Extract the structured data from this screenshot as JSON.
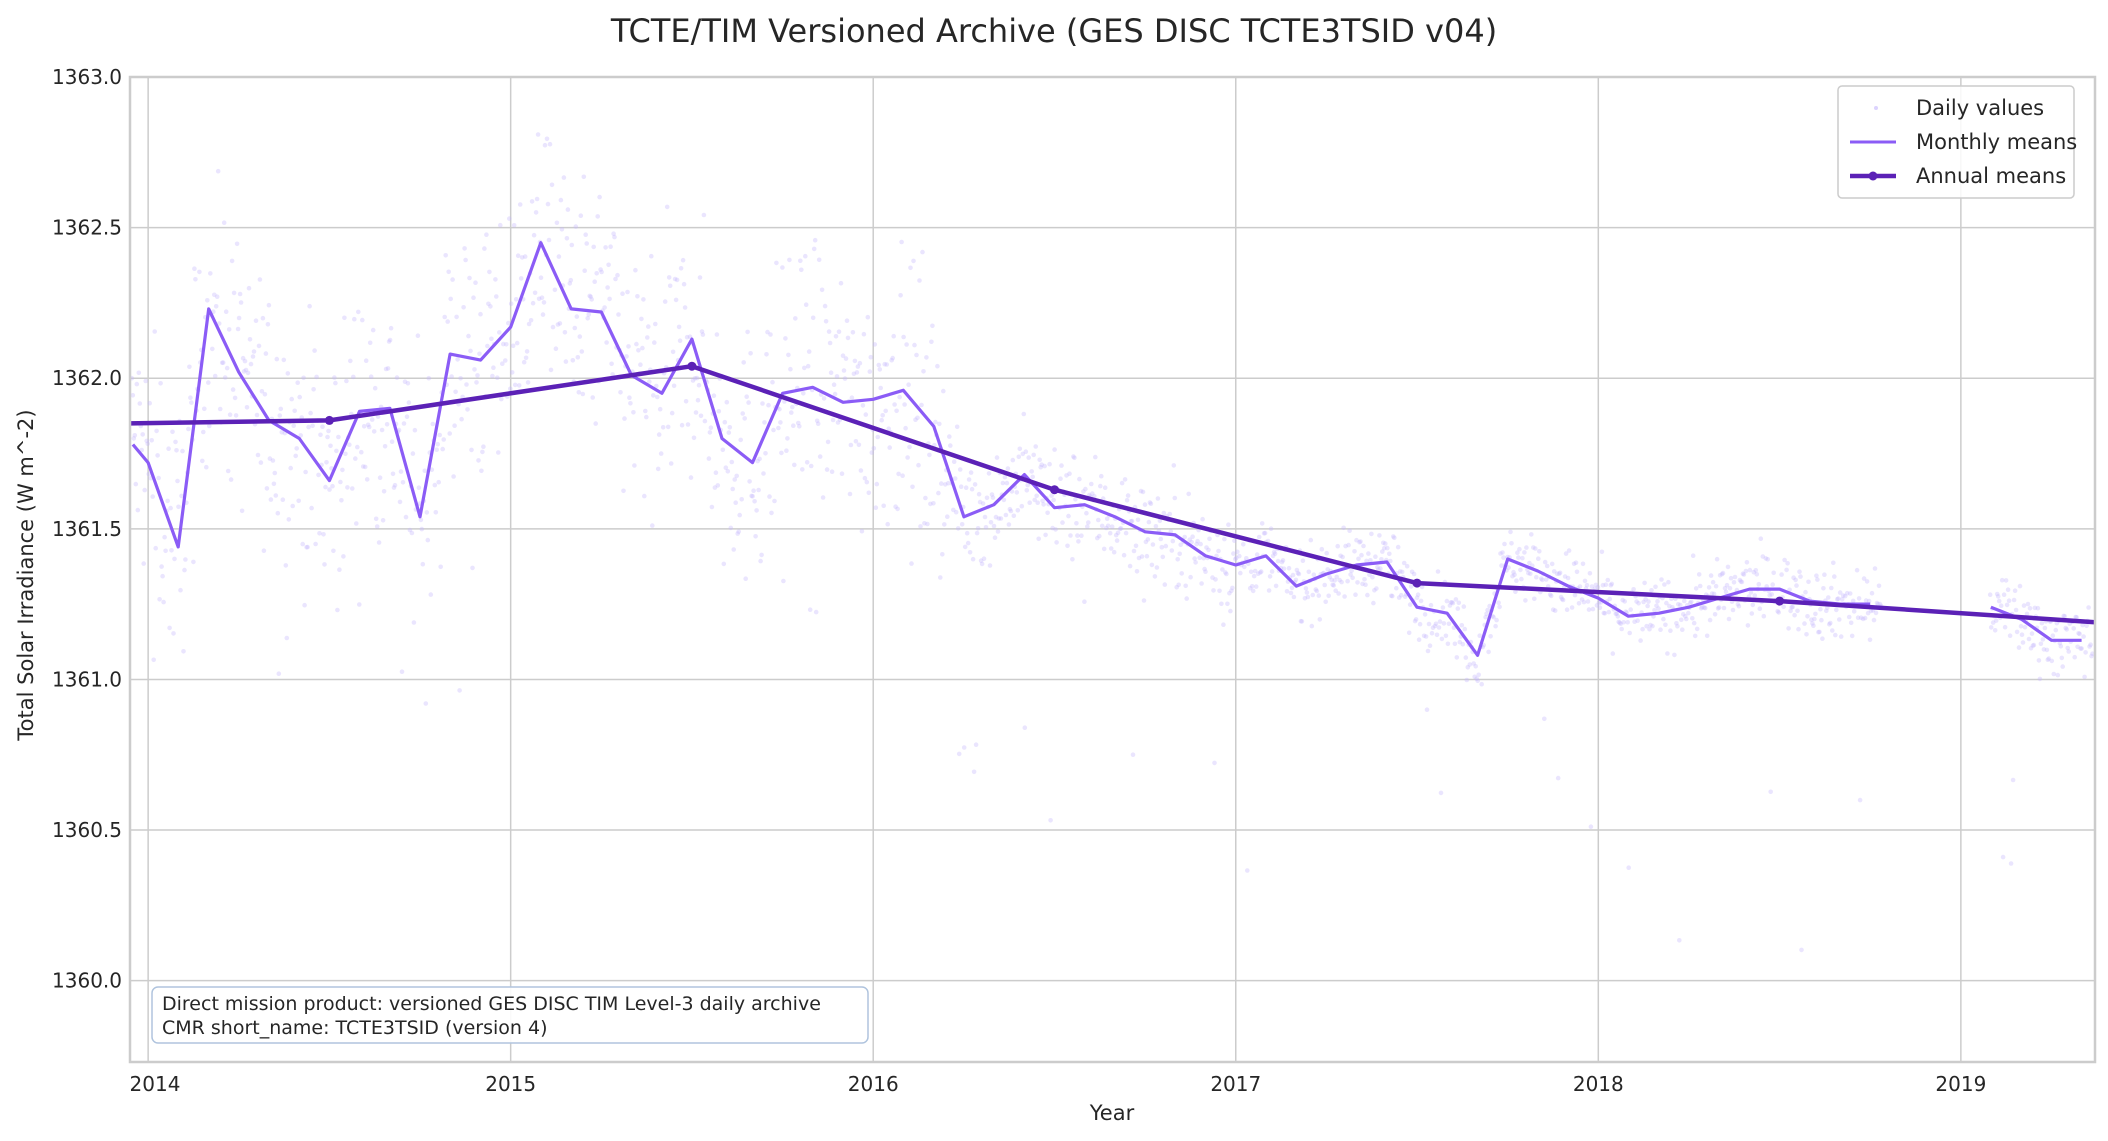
{
  "chart_data": {
    "type": "line",
    "title": "TCTE/TIM Versioned Archive (GES DISC TCTE3TSID v04)",
    "xlabel": "Year",
    "ylabel": "Total Solar Irradiance (W m^-2)",
    "xlim": [
      2013.95,
      2019.37
    ],
    "ylim": [
      1359.73,
      1363.0
    ],
    "xticks": [
      2014,
      2015,
      2016,
      2017,
      2018,
      2019
    ],
    "yticks": [
      1360.0,
      1360.5,
      1361.0,
      1361.5,
      1362.0,
      1362.5,
      1363.0
    ],
    "grid": true,
    "legend_position": "top-right",
    "legend": [
      "Daily values",
      "Monthly means",
      "Annual means"
    ],
    "annotation": {
      "line1": "Direct mission product: versioned GES DISC TIM Level-3 daily archive",
      "line2": "CMR short_name: TCTE3TSID (version 4)"
    },
    "colors": {
      "daily": "#c4b5fd",
      "monthly": "#8b5cf6",
      "annual": "#5b21b6",
      "grid": "#cccccc",
      "text": "#262626"
    },
    "series": [
      {
        "name": "Monthly means",
        "x": [
          2013.958,
          2014.0,
          2014.083,
          2014.167,
          2014.25,
          2014.333,
          2014.417,
          2014.5,
          2014.583,
          2014.667,
          2014.75,
          2014.833,
          2014.917,
          2015.0,
          2015.083,
          2015.167,
          2015.25,
          2015.333,
          2015.417,
          2015.5,
          2015.583,
          2015.667,
          2015.75,
          2015.833,
          2015.917,
          2016.0,
          2016.083,
          2016.167,
          2016.25,
          2016.333,
          2016.417,
          2016.5,
          2016.583,
          2016.667,
          2016.75,
          2016.833,
          2016.917,
          2017.0,
          2017.083,
          2017.167,
          2017.25,
          2017.333,
          2017.417,
          2017.5,
          2017.583,
          2017.667,
          2017.75,
          2017.833,
          2017.917,
          2018.0,
          2018.083,
          2018.167,
          2018.25,
          2018.333,
          2018.417,
          2018.5,
          2018.583,
          2018.667,
          2018.75,
          2019.083,
          2019.167,
          2019.25,
          2019.333
        ],
        "values": [
          1361.78,
          1361.72,
          1361.44,
          1362.23,
          1362.02,
          1361.86,
          1361.8,
          1361.66,
          1361.89,
          1361.9,
          1361.54,
          1362.08,
          1362.06,
          1362.17,
          1362.45,
          1362.23,
          1362.22,
          1362.01,
          1361.95,
          1362.13,
          1361.8,
          1361.72,
          1361.95,
          1361.97,
          1361.92,
          1361.93,
          1361.96,
          1361.84,
          1361.54,
          1361.58,
          1361.68,
          1361.57,
          1361.58,
          1361.54,
          1361.49,
          1361.48,
          1361.41,
          1361.38,
          1361.41,
          1361.31,
          1361.35,
          1361.38,
          1361.39,
          1361.24,
          1361.22,
          1361.08,
          1361.4,
          1361.36,
          1361.31,
          1361.27,
          1361.21,
          1361.22,
          1361.24,
          1361.27,
          1361.3,
          1361.3,
          1361.26,
          1361.25,
          1361.25,
          1361.24,
          1361.2,
          1361.13,
          1361.13
        ]
      },
      {
        "name": "Annual means",
        "x": [
          2013.95,
          2014.5,
          2015.5,
          2016.5,
          2017.5,
          2018.5,
          2019.37
        ],
        "values": [
          1361.85,
          1361.86,
          1362.04,
          1361.63,
          1361.32,
          1361.26,
          1361.19
        ]
      },
      {
        "name": "Daily values",
        "x": [],
        "values": []
      }
    ]
  }
}
